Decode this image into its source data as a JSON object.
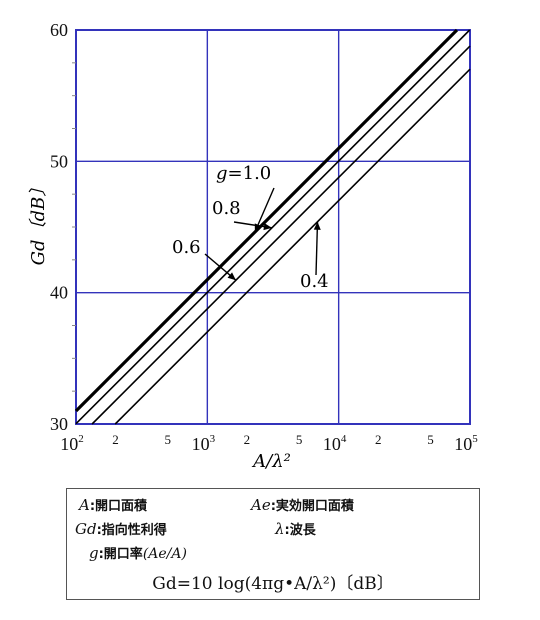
{
  "chart_data": {
    "type": "line",
    "title": "",
    "xlabel": "A/λ²",
    "ylabel": "Gd〔dB〕",
    "x_scale": "log",
    "xlim": [
      100,
      100000
    ],
    "ylim": [
      30,
      60
    ],
    "x_major_ticks": [
      {
        "value": 100,
        "base": "10",
        "exp": "2"
      },
      {
        "value": 1000,
        "base": "10",
        "exp": "3"
      },
      {
        "value": 10000,
        "base": "10",
        "exp": "4"
      },
      {
        "value": 100000,
        "base": "10",
        "exp": "5"
      }
    ],
    "x_minor_labels": [
      {
        "value": 200,
        "label": "2"
      },
      {
        "value": 500,
        "label": "5"
      },
      {
        "value": 2000,
        "label": "2"
      },
      {
        "value": 5000,
        "label": "5"
      },
      {
        "value": 20000,
        "label": "2"
      },
      {
        "value": 50000,
        "label": "5"
      }
    ],
    "y_ticks": [
      30,
      40,
      50,
      60
    ],
    "grid": true,
    "series": [
      {
        "name": "g=1.0",
        "g": 1.0,
        "bold": true
      },
      {
        "name": "0.8",
        "g": 0.8,
        "bold": false
      },
      {
        "name": "0.6",
        "g": 0.6,
        "bold": false
      },
      {
        "name": "0.4",
        "g": 0.4,
        "bold": false
      }
    ],
    "annotations": [
      {
        "text": "g=1.0",
        "series": 0
      },
      {
        "text": "0.8",
        "series": 1
      },
      {
        "text": "0.6",
        "series": 2
      },
      {
        "text": "0.4",
        "series": 3
      }
    ],
    "colors": {
      "frame": "#3333bb",
      "grid": "#3333bb",
      "line": "#000000"
    }
  },
  "legend": {
    "a_sym": "A",
    "a_desc": ":開口面積",
    "ae_sym": "Ae",
    "ae_desc": ":実効開口面積",
    "gd_sym": "Gd",
    "gd_desc": ":指向性利得",
    "lambda_sym": "λ",
    "lambda_desc": ":波長",
    "g_sym": "g",
    "g_desc": ":開口率",
    "g_paren": "(Ae/A)",
    "formula": "Gd=10 log(4πg•A/λ²)〔dB〕"
  }
}
